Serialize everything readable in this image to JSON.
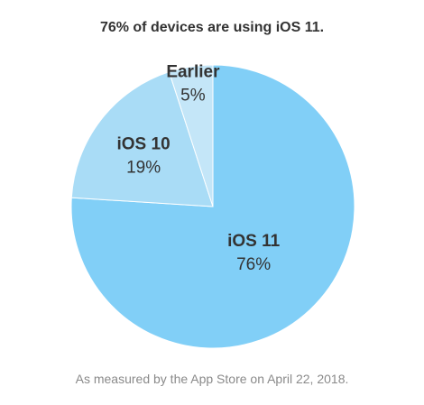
{
  "chart_data": {
    "type": "pie",
    "title": "76% of devices are using iOS 11.",
    "footnote": "As measured by the App Store on April 22, 2018.",
    "slices": [
      {
        "label": "iOS 11",
        "value": 76,
        "value_label": "76%",
        "color": "#81cff7"
      },
      {
        "label": "iOS 10",
        "value": 19,
        "value_label": "19%",
        "color": "#a9dcf6"
      },
      {
        "label": "Earlier",
        "value": 5,
        "value_label": "5%",
        "color": "#c4e6f8"
      }
    ]
  }
}
